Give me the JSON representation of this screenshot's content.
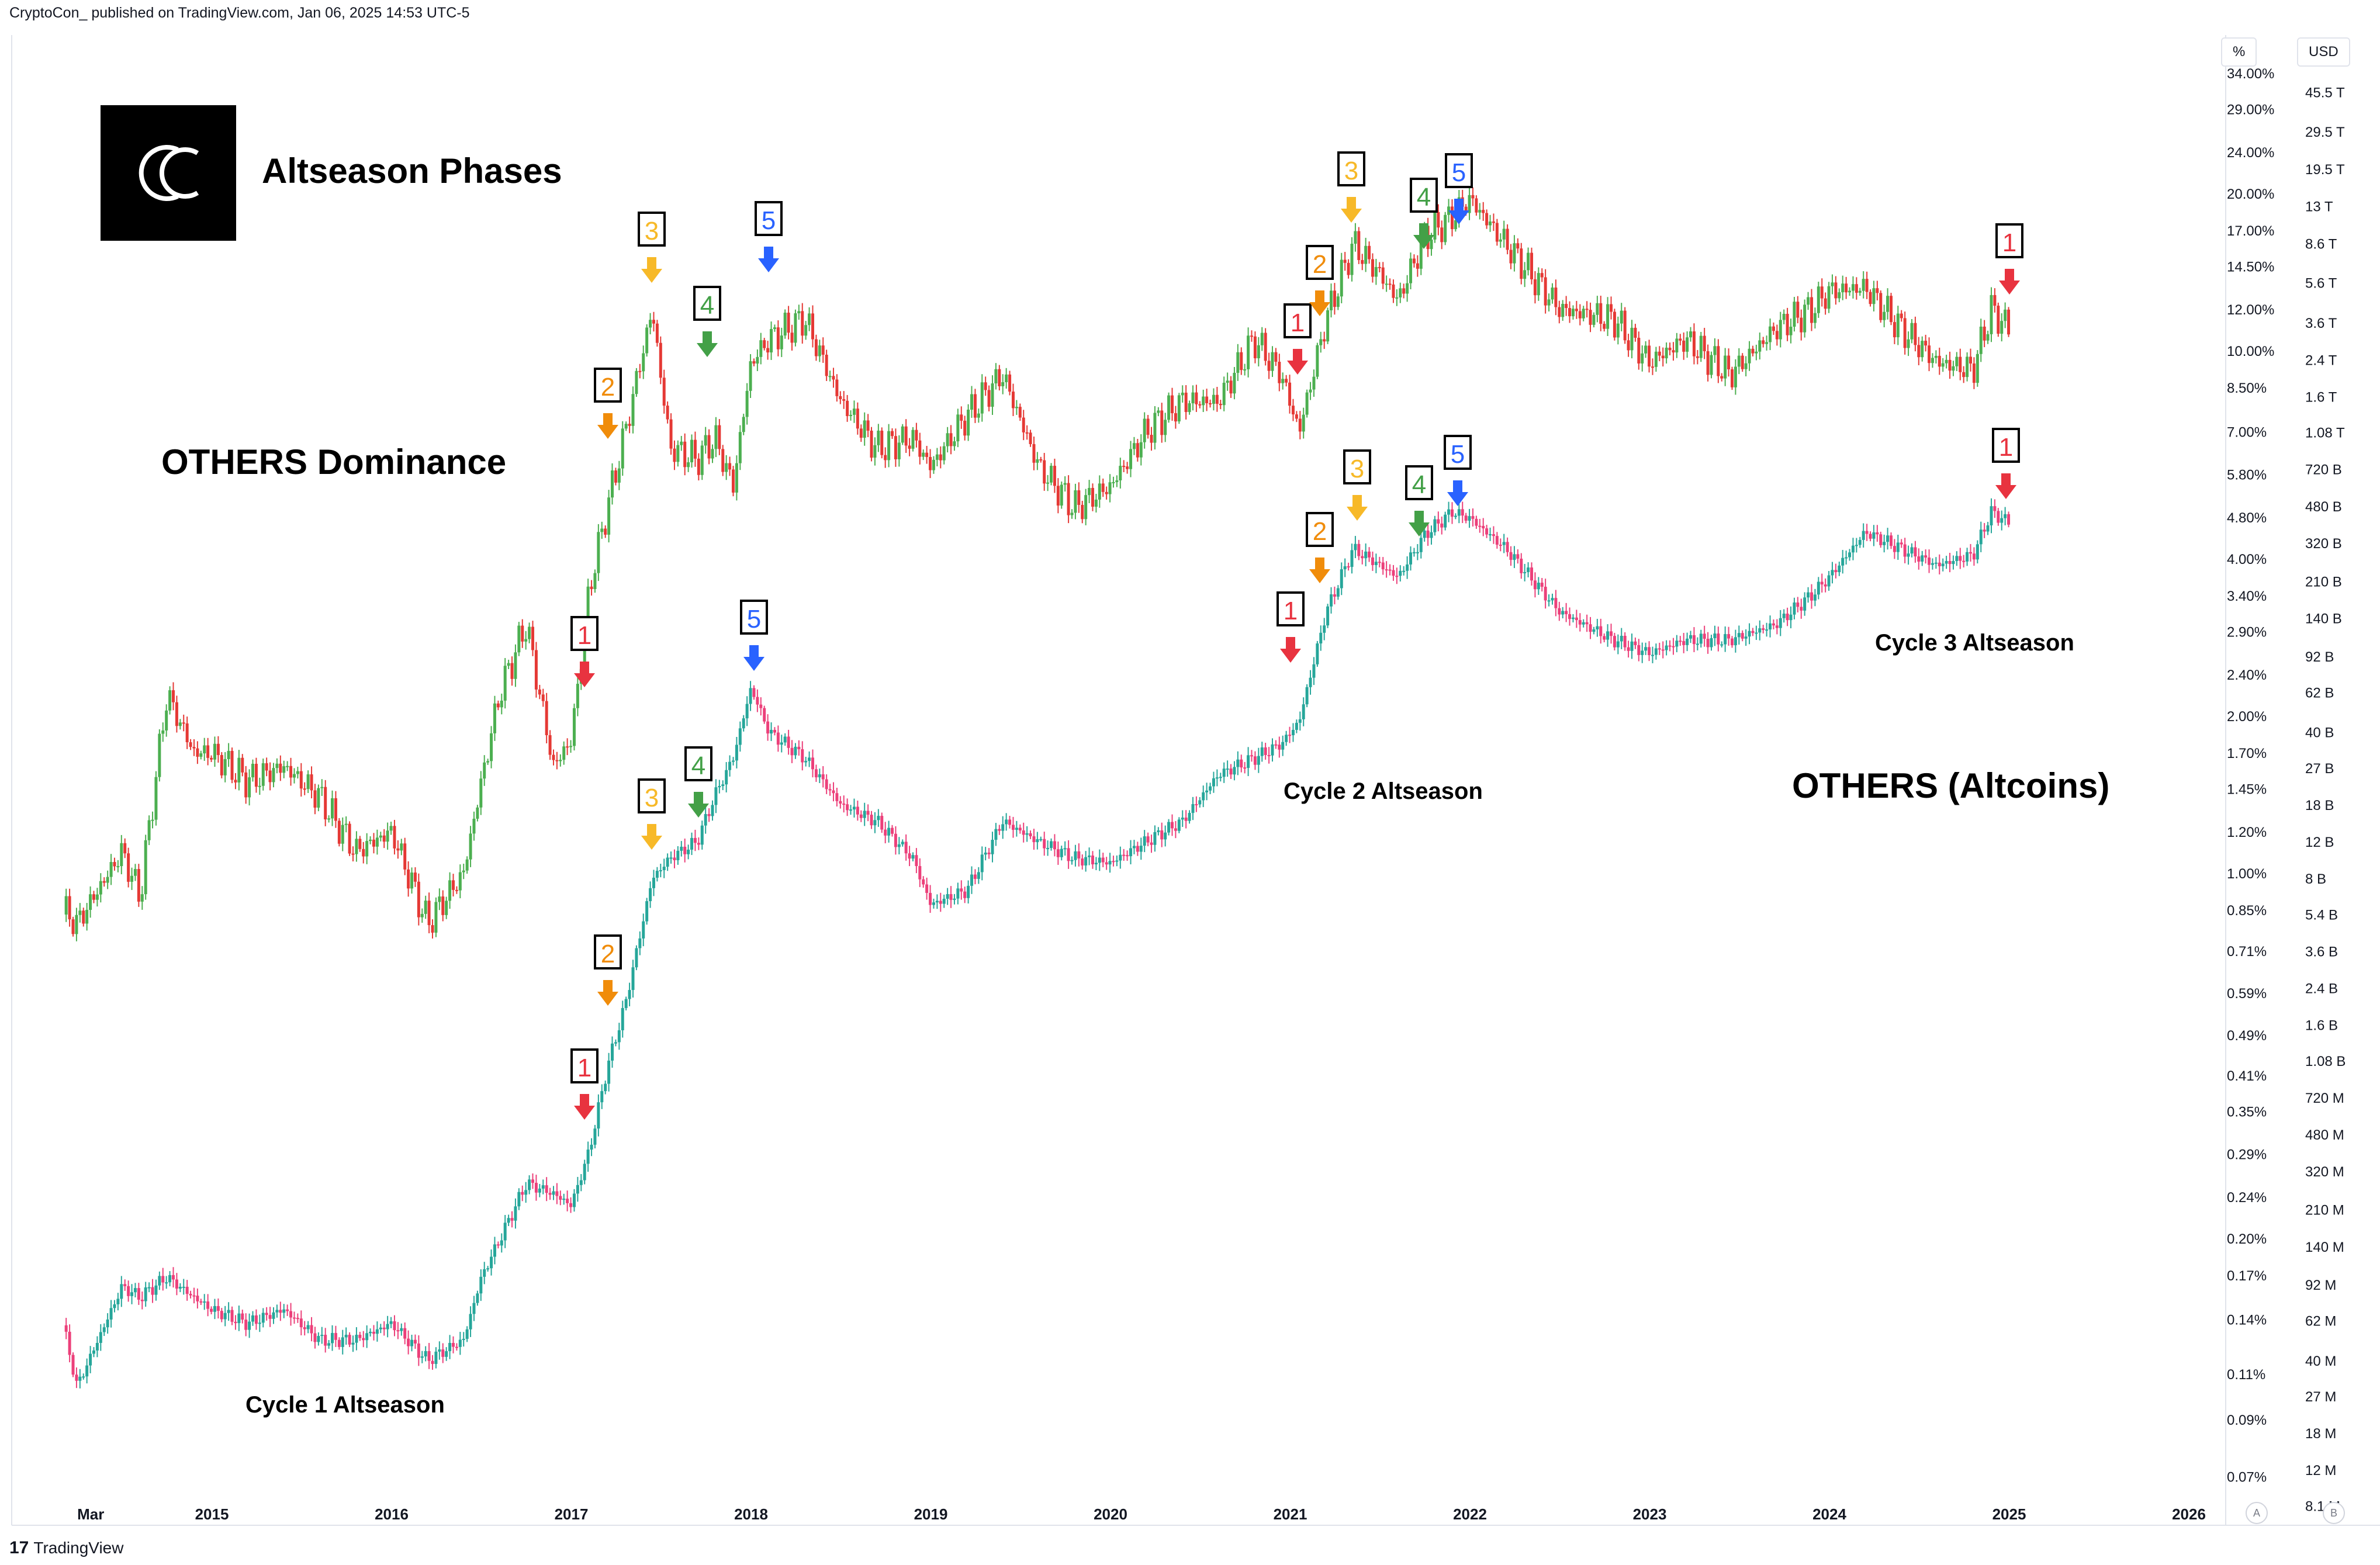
{
  "header": {
    "publisher_line": "CryptoCon_  published on TradingView.com, Jan 06, 2025 14:53 UTC-5"
  },
  "title": "Altseason Phases",
  "labels": {
    "dominance": "OTHERS Dominance",
    "altcoins": "OTHERS (Altcoins)",
    "cycle1": "Cycle 1 Altseason",
    "cycle2": "Cycle 2 Altseason",
    "cycle3": "Cycle 3 Altseason"
  },
  "footer": {
    "brand": "TradingView"
  },
  "buttons": {
    "percent_scale": "%",
    "currency": "USD",
    "auto": "A",
    "log": "B"
  },
  "colors": {
    "phase1": "#e8333f",
    "phase2": "#f08c0a",
    "phase3": "#f7b928",
    "phase4": "#43a047",
    "phase5": "#2962ff",
    "dom_up": "#4caf50",
    "dom_down": "#e53935",
    "cap_up": "#26a69a",
    "cap_down": "#ec407a"
  },
  "chart_data": [
    {
      "type": "candlestick-line",
      "series_name": "OTHERS Dominance",
      "yscale": "log",
      "ylabel_unit": "%",
      "y_ticks": [
        "34.00%",
        "29.00%",
        "24.00%",
        "20.00%",
        "17.00%",
        "14.50%",
        "12.00%",
        "10.00%",
        "8.50%",
        "7.00%",
        "5.80%",
        "4.80%",
        "4.00%",
        "3.40%",
        "2.90%",
        "2.40%",
        "2.00%",
        "1.70%",
        "1.45%",
        "1.20%",
        "1.00%",
        "0.85%",
        "0.71%",
        "0.59%",
        "0.49%",
        "0.41%",
        "0.35%",
        "0.29%",
        "0.24%",
        "0.20%",
        "0.17%",
        "0.14%",
        "0.11%",
        "0.09%",
        "0.07%"
      ],
      "x": [
        2014.17,
        2014.25,
        2014.5,
        2014.6,
        2014.75,
        2014.9,
        2015.0,
        2015.2,
        2015.4,
        2015.6,
        2015.8,
        2016.0,
        2016.2,
        2016.4,
        2016.5,
        2016.6,
        2016.75,
        2016.9,
        2017.0,
        2017.1,
        2017.2,
        2017.3,
        2017.45,
        2017.55,
        2017.7,
        2017.8,
        2017.9,
        2018.0,
        2018.1,
        2018.3,
        2018.5,
        2018.7,
        2018.9,
        2019.0,
        2019.2,
        2019.4,
        2019.6,
        2019.8,
        2020.0,
        2020.2,
        2020.4,
        2020.6,
        2020.8,
        2020.95,
        2021.05,
        2021.2,
        2021.35,
        2021.5,
        2021.6,
        2021.75,
        2021.9,
        2022.0,
        2022.2,
        2022.5,
        2022.8,
        2023.0,
        2023.2,
        2023.45,
        2023.7,
        2023.9,
        2024.0,
        2024.2,
        2024.4,
        2024.6,
        2024.8,
        2024.9,
        2025.0
      ],
      "y": [
        0.85,
        0.8,
        1.1,
        0.9,
        2.2,
        1.7,
        1.7,
        1.5,
        1.6,
        1.4,
        1.1,
        1.2,
        0.8,
        1.0,
        1.5,
        2.2,
        3.0,
        1.6,
        1.8,
        3.5,
        5.0,
        7.0,
        12.0,
        6.5,
        6.2,
        6.8,
        5.5,
        9.5,
        10.5,
        11.5,
        8.0,
        6.5,
        6.8,
        6.0,
        7.5,
        9.0,
        6.0,
        5.0,
        5.5,
        7.0,
        8.0,
        8.0,
        10.5,
        9.0,
        7.0,
        11.5,
        16.0,
        14.0,
        12.5,
        16.5,
        18.0,
        19.5,
        16.0,
        12.0,
        11.5,
        9.5,
        10.5,
        9.0,
        11.0,
        12.0,
        13.0,
        13.2,
        11.0,
        9.5,
        9.2,
        12.0,
        11.0
      ]
    },
    {
      "type": "candlestick-line",
      "series_name": "OTHERS (Altcoins)",
      "yscale": "log",
      "ylabel_unit": "USD",
      "y_ticks": [
        "45.5 T",
        "29.5 T",
        "19.5 T",
        "13 T",
        "8.6 T",
        "5.6 T",
        "3.6 T",
        "2.4 T",
        "1.6 T",
        "1.08 T",
        "720 B",
        "480 B",
        "320 B",
        "210 B",
        "140 B",
        "92 B",
        "62 B",
        "40 B",
        "27 B",
        "18 B",
        "12 B",
        "8 B",
        "5.4 B",
        "3.6 B",
        "2.4 B",
        "1.6 B",
        "1.08 B",
        "720 M",
        "480 M",
        "320 M",
        "210 M",
        "140 M",
        "92 M",
        "62 M",
        "40 M",
        "27 M",
        "18 M",
        "12 M",
        "8.1 M"
      ],
      "x": [
        2014.17,
        2014.25,
        2014.5,
        2014.6,
        2014.75,
        2014.9,
        2015.0,
        2015.2,
        2015.4,
        2015.6,
        2015.8,
        2016.0,
        2016.2,
        2016.4,
        2016.5,
        2016.6,
        2016.75,
        2016.9,
        2017.0,
        2017.1,
        2017.2,
        2017.3,
        2017.45,
        2017.55,
        2017.7,
        2017.8,
        2017.9,
        2018.0,
        2018.1,
        2018.3,
        2018.5,
        2018.7,
        2018.9,
        2019.0,
        2019.2,
        2019.4,
        2019.6,
        2019.8,
        2020.0,
        2020.2,
        2020.4,
        2020.6,
        2020.8,
        2020.95,
        2021.05,
        2021.2,
        2021.35,
        2021.5,
        2021.6,
        2021.75,
        2021.9,
        2022.0,
        2022.2,
        2022.5,
        2022.8,
        2023.0,
        2023.2,
        2023.45,
        2023.7,
        2023.9,
        2024.0,
        2024.2,
        2024.4,
        2024.6,
        2024.8,
        2024.9,
        2025.0
      ],
      "y": [
        0.06,
        0.03,
        0.09,
        0.08,
        0.1,
        0.08,
        0.07,
        0.06,
        0.07,
        0.05,
        0.05,
        0.06,
        0.04,
        0.05,
        0.1,
        0.15,
        0.28,
        0.25,
        0.22,
        0.4,
        1.0,
        2.0,
        8.0,
        10.0,
        12.0,
        20.0,
        30.0,
        65.0,
        40.0,
        30.0,
        18.0,
        15.0,
        10.0,
        6.0,
        7.0,
        15.0,
        12.0,
        10.0,
        9.5,
        12.0,
        15.0,
        25.0,
        30.0,
        35.0,
        45.0,
        150.0,
        300.0,
        250.0,
        220.0,
        350.0,
        450.0,
        420.0,
        300.0,
        150.0,
        110.0,
        95.0,
        110.0,
        110.0,
        130.0,
        180.0,
        220.0,
        360.0,
        300.0,
        250.0,
        280.0,
        450.0,
        400.0
      ]
    }
  ],
  "x_ticks": [
    "Mar",
    "2015",
    "2016",
    "2017",
    "2018",
    "2019",
    "2020",
    "2021",
    "2022",
    "2023",
    "2024",
    "2025",
    "2026"
  ],
  "phase_markers_dominance": [
    {
      "num": "1",
      "phase": 1
    },
    {
      "num": "2",
      "phase": 2
    },
    {
      "num": "3",
      "phase": 3
    },
    {
      "num": "4",
      "phase": 4
    },
    {
      "num": "5",
      "phase": 5
    },
    {
      "num": "1",
      "phase": 1
    },
    {
      "num": "2",
      "phase": 2
    },
    {
      "num": "3",
      "phase": 3
    },
    {
      "num": "4",
      "phase": 4
    },
    {
      "num": "5",
      "phase": 5
    },
    {
      "num": "1",
      "phase": 1
    }
  ],
  "phase_markers_altcoins": [
    {
      "num": "1",
      "phase": 1
    },
    {
      "num": "2",
      "phase": 2
    },
    {
      "num": "3",
      "phase": 3
    },
    {
      "num": "4",
      "phase": 4
    },
    {
      "num": "5",
      "phase": 5
    },
    {
      "num": "1",
      "phase": 1
    },
    {
      "num": "2",
      "phase": 2
    },
    {
      "num": "3",
      "phase": 3
    },
    {
      "num": "4",
      "phase": 4
    },
    {
      "num": "5",
      "phase": 5
    },
    {
      "num": "1",
      "phase": 1
    }
  ]
}
